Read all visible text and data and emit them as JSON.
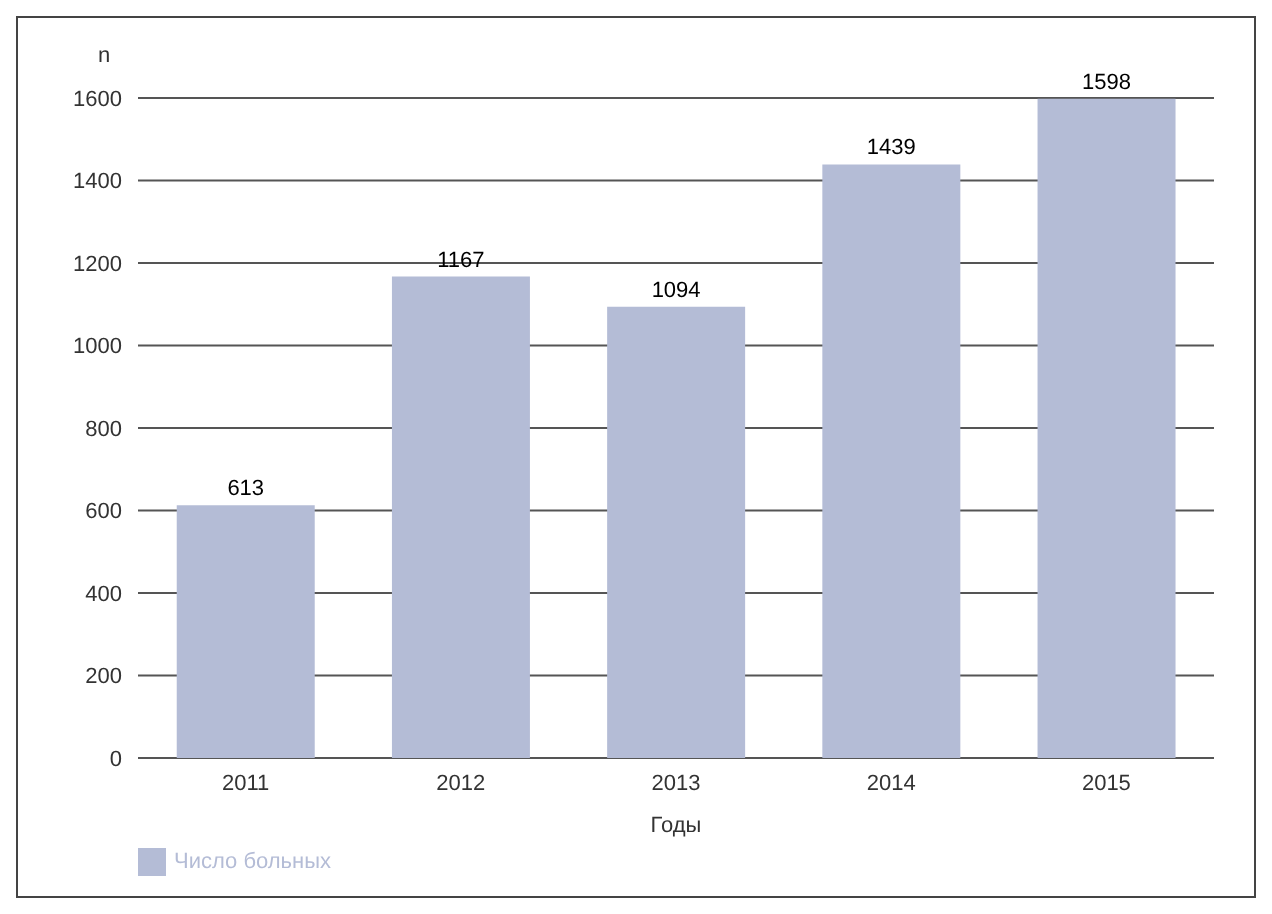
{
  "chart_data": {
    "type": "bar",
    "ylabel": "n",
    "xlabel": "Годы",
    "categories": [
      "2011",
      "2012",
      "2013",
      "2014",
      "2015"
    ],
    "series": [
      {
        "name": "Число больных",
        "color": "#b4bcd6",
        "values": [
          613,
          1167,
          1094,
          1439,
          1598
        ]
      }
    ],
    "ylim": [
      0,
      1600
    ],
    "yticks": [
      0,
      200,
      400,
      600,
      800,
      1000,
      1200,
      1400,
      1600
    ],
    "grid": "y",
    "legend": "bottom left",
    "data_labels": true
  }
}
